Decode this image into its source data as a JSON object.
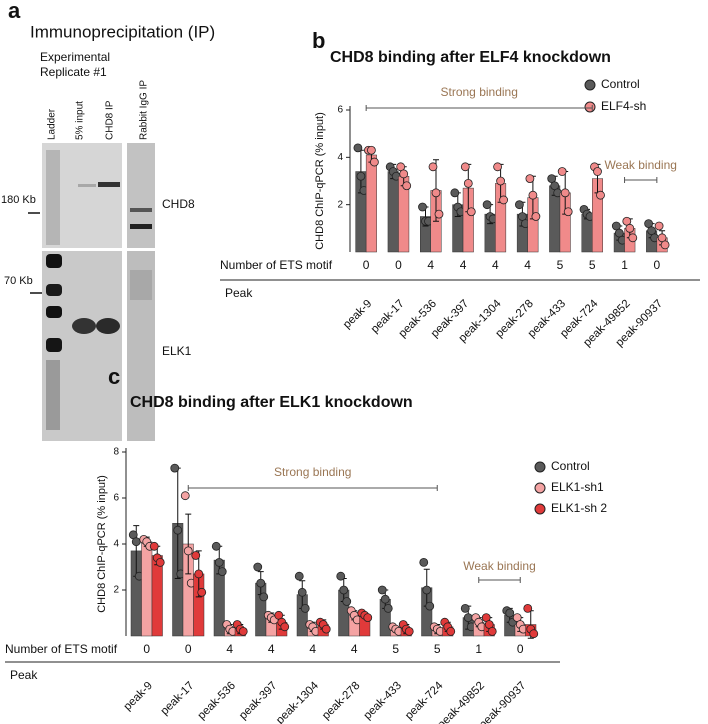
{
  "panel_labels": [
    "a",
    "b",
    "c"
  ],
  "blot": {
    "title": "Immunoprecipitation (IP)",
    "subtitle": [
      "Experimental",
      "Replicate #1"
    ],
    "lanes": [
      "Ladder",
      "5% input",
      "CHD8 IP",
      "Rabbit IgG IP"
    ],
    "markers": [
      "180 Kb",
      "70 Kb"
    ],
    "proteins": [
      "CHD8",
      "ELK1"
    ]
  },
  "chart_data": [
    {
      "type": "bar",
      "title": "CHD8 binding after ELF4 knockdown",
      "ylabel": "CHD8 ChIP-qPCR (% input)",
      "categories": [
        "peak-9",
        "peak-17",
        "peak-536",
        "peak-397",
        "peak-1304",
        "peak-278",
        "peak-433",
        "peak-724",
        "peak-49852",
        "peak-90937"
      ],
      "row_label": "Number of ETS motif",
      "ets_motifs": [
        0,
        0,
        4,
        4,
        4,
        4,
        5,
        5,
        1,
        0
      ],
      "category_label": "Peak",
      "ylim": [
        0,
        6
      ],
      "yticks": [
        2,
        4,
        6
      ],
      "legend": "upper right",
      "annotations": [
        {
          "text": "Strong binding",
          "start": "peak-9",
          "end": "peak-724"
        },
        {
          "text": "Weak binding",
          "start": "peak-49852",
          "end": "peak-90937"
        }
      ],
      "series": [
        {
          "name": "Control",
          "color": "#5a5a5a",
          "values": [
            3.4,
            3.4,
            1.5,
            2.0,
            1.6,
            1.6,
            2.8,
            1.6,
            0.8,
            0.9
          ],
          "errors": [
            0.9,
            0.3,
            0.4,
            0.5,
            0.4,
            0.5,
            0.4,
            0.2,
            0.3,
            0.3
          ],
          "points": [
            [
              4.4,
              3.2,
              2.6
            ],
            [
              3.6,
              3.4,
              3.2
            ],
            [
              1.9,
              1.3,
              1.3
            ],
            [
              2.5,
              1.9,
              1.7
            ],
            [
              2.0,
              1.5,
              1.4
            ],
            [
              2.0,
              1.5,
              1.2
            ],
            [
              3.1,
              2.8,
              2.5
            ],
            [
              1.8,
              1.6,
              1.5
            ],
            [
              1.1,
              0.8,
              0.5
            ],
            [
              1.2,
              0.9,
              0.6
            ]
          ]
        },
        {
          "name": "ELF4-sh",
          "color": "#f08a8a",
          "values": [
            4.1,
            3.2,
            2.6,
            2.7,
            2.9,
            2.3,
            2.5,
            3.1,
            1.0,
            0.6
          ],
          "errors": [
            0.3,
            0.4,
            1.3,
            1.0,
            0.8,
            0.9,
            0.9,
            0.6,
            0.4,
            0.3
          ],
          "points": [
            [
              4.3,
              4.3,
              3.8
            ],
            [
              3.6,
              3.3,
              2.8
            ],
            [
              3.6,
              2.5,
              1.6
            ],
            [
              3.6,
              2.9,
              1.7
            ],
            [
              3.6,
              3.0,
              2.2
            ],
            [
              3.1,
              2.4,
              1.5
            ],
            [
              3.4,
              2.5,
              1.7
            ],
            [
              3.6,
              3.4,
              2.4
            ],
            [
              1.3,
              1.0,
              0.6
            ],
            [
              1.1,
              0.6,
              0.3
            ]
          ]
        }
      ]
    },
    {
      "type": "bar",
      "title": "CHD8 binding after ELK1 knockdown",
      "ylabel": "CHD8 ChIP-qPCR (% input)",
      "categories": [
        "peak-9",
        "peak-17",
        "peak-536",
        "peak-397",
        "peak-1304",
        "peak-278",
        "peak-433",
        "peak-724",
        "peak-49852",
        "peak-90937"
      ],
      "row_label": "Number of ETS motif",
      "ets_motifs": [
        0,
        0,
        4,
        4,
        4,
        4,
        5,
        5,
        1,
        0
      ],
      "category_label": "Peak",
      "ylim": [
        0,
        8
      ],
      "yticks": [
        2,
        4,
        6,
        8
      ],
      "legend": "upper right",
      "annotations": [
        {
          "text": "Strong  binding",
          "start": "peak-17",
          "end": "peak-724"
        },
        {
          "text": "Weak binding",
          "start": "peak-49852",
          "end": "peak-90937"
        }
      ],
      "series": [
        {
          "name": "Control",
          "color": "#5a5a5a",
          "values": [
            3.7,
            4.9,
            3.3,
            2.3,
            1.8,
            2.0,
            1.6,
            2.1,
            0.8,
            0.9
          ],
          "errors": [
            1.1,
            2.4,
            0.6,
            0.5,
            0.6,
            0.5,
            0.4,
            0.8,
            0.5,
            0.3
          ],
          "points": [
            [
              4.4,
              4.1,
              2.6
            ],
            [
              7.3,
              4.6,
              2.7
            ],
            [
              3.9,
              3.2,
              2.8
            ],
            [
              3.0,
              2.3,
              1.7
            ],
            [
              2.6,
              1.9,
              1.2
            ],
            [
              2.6,
              2.0,
              1.5
            ],
            [
              2.0,
              1.6,
              1.2
            ],
            [
              3.2,
              2.0,
              1.3
            ],
            [
              1.2,
              0.8,
              0.4
            ],
            [
              1.1,
              1.0,
              0.6
            ]
          ]
        },
        {
          "name": "ELK1-sh1",
          "color": "#f4a3a3",
          "values": [
            4.1,
            4.0,
            0.3,
            0.8,
            0.4,
            0.9,
            0.3,
            0.3,
            0.6,
            0.5
          ],
          "errors": [
            0.2,
            1.3,
            0.2,
            0.2,
            0.2,
            0.2,
            0.1,
            0.2,
            0.2,
            0.3
          ],
          "points": [
            [
              4.2,
              4.1,
              3.9
            ],
            [
              6.1,
              3.7,
              2.3
            ],
            [
              0.5,
              0.3,
              0.2
            ],
            [
              0.9,
              0.8,
              0.7
            ],
            [
              0.5,
              0.4,
              0.2
            ],
            [
              1.1,
              0.9,
              0.7
            ],
            [
              0.4,
              0.3,
              0.2
            ],
            [
              0.4,
              0.3,
              0.2
            ],
            [
              0.8,
              0.6,
              0.4
            ],
            [
              0.8,
              0.5,
              0.3
            ]
          ]
        },
        {
          "name": "ELK1-sh 2",
          "color": "#e03a3a",
          "values": [
            3.5,
            2.7,
            0.3,
            0.6,
            0.5,
            0.9,
            0.3,
            0.4,
            0.5,
            0.5
          ],
          "errors": [
            0.4,
            1.0,
            0.2,
            0.3,
            0.2,
            0.1,
            0.2,
            0.2,
            0.3,
            0.6
          ],
          "points": [
            [
              3.9,
              3.4,
              3.2
            ],
            [
              3.5,
              2.7,
              1.9
            ],
            [
              0.5,
              0.3,
              0.2
            ],
            [
              0.9,
              0.6,
              0.4
            ],
            [
              0.6,
              0.5,
              0.3
            ],
            [
              1.0,
              0.9,
              0.8
            ],
            [
              0.5,
              0.3,
              0.2
            ],
            [
              0.6,
              0.4,
              0.2
            ],
            [
              0.8,
              0.5,
              0.2
            ],
            [
              1.2,
              0.3,
              0.1
            ]
          ]
        }
      ]
    }
  ]
}
